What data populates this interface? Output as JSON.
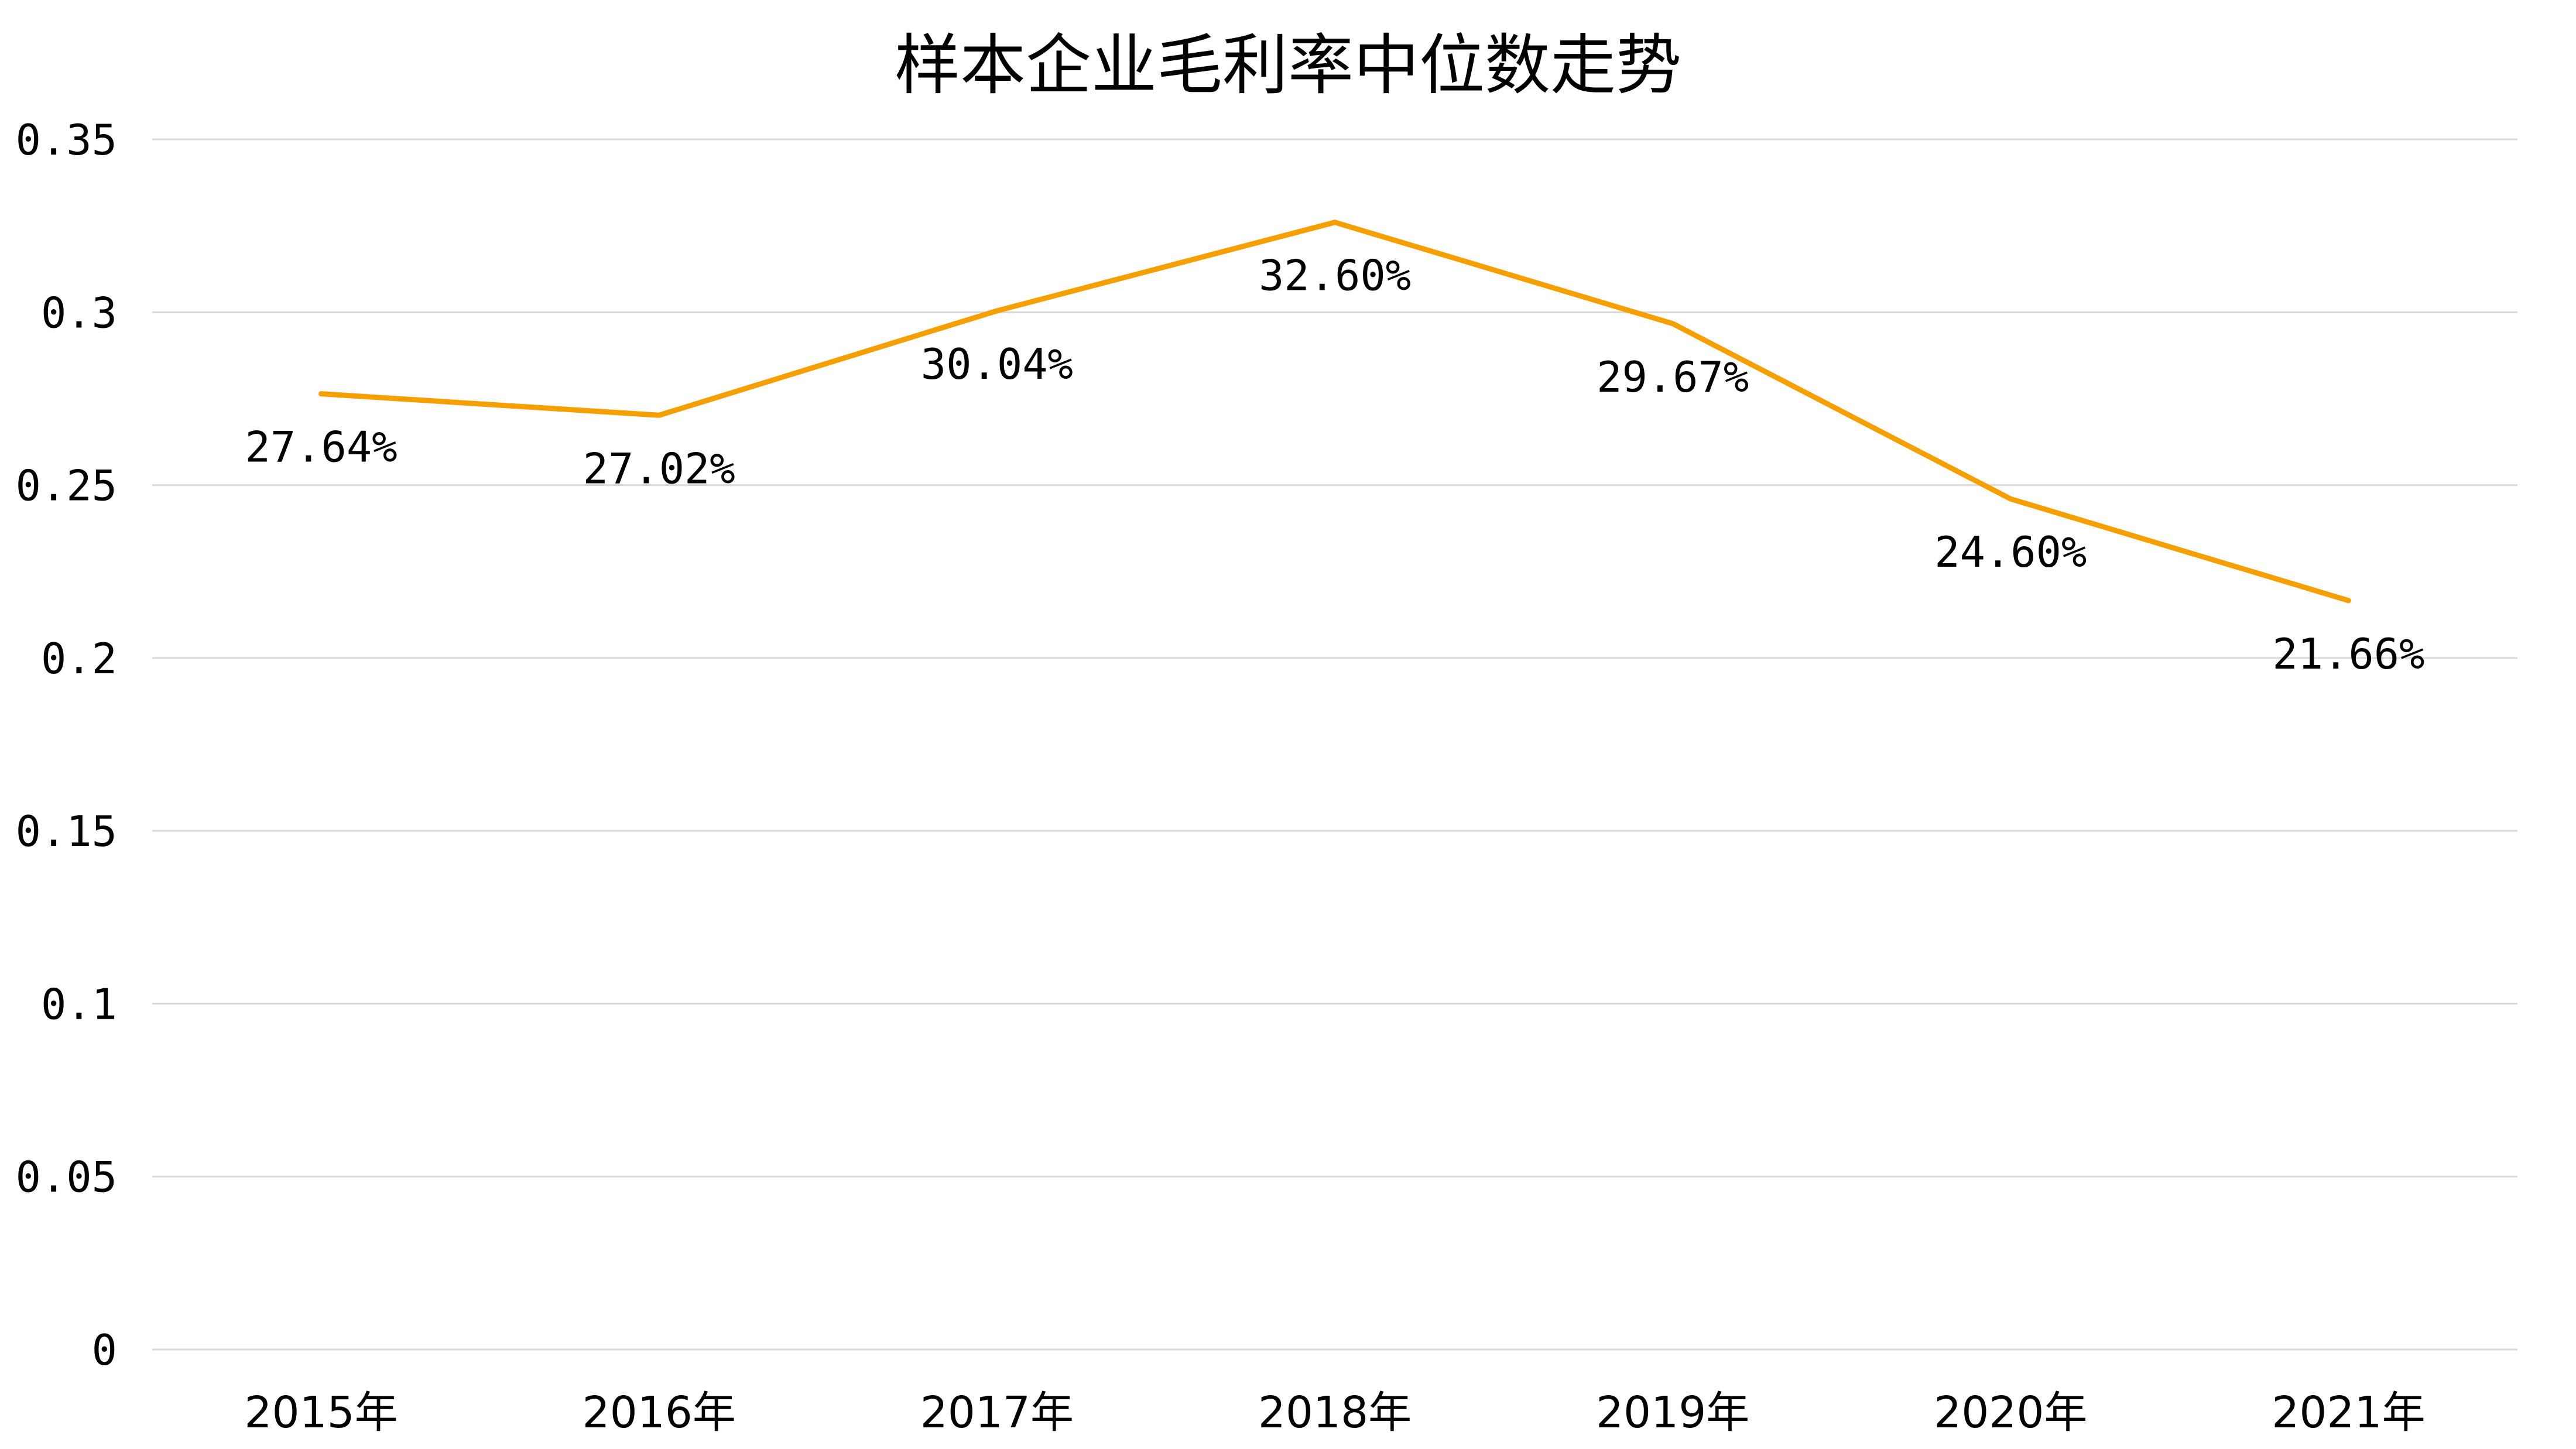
{
  "chart_data": {
    "type": "line",
    "title": "样本企业毛利率中位数走势",
    "xlabel": "",
    "ylabel": "",
    "categories": [
      "2015年",
      "2016年",
      "2017年",
      "2018年",
      "2019年",
      "2020年",
      "2021年"
    ],
    "series": [
      {
        "values": [
          0.2764,
          0.2702,
          0.3004,
          0.326,
          0.2967,
          0.246,
          0.2166
        ],
        "data_labels": [
          "27.64%",
          "27.02%",
          "30.04%",
          "32.60%",
          "29.67%",
          "24.60%",
          "21.66%"
        ],
        "color": "#f5a000"
      }
    ],
    "ylim": [
      0,
      0.35
    ],
    "yticks": [
      0,
      0.05,
      0.1,
      0.15,
      0.2,
      0.25,
      0.3,
      0.35
    ],
    "ytick_labels": [
      "0",
      "0.05",
      "0.1",
      "0.15",
      "0.2",
      "0.25",
      "0.3",
      "0.35"
    ],
    "grid": true,
    "legend": "none"
  }
}
